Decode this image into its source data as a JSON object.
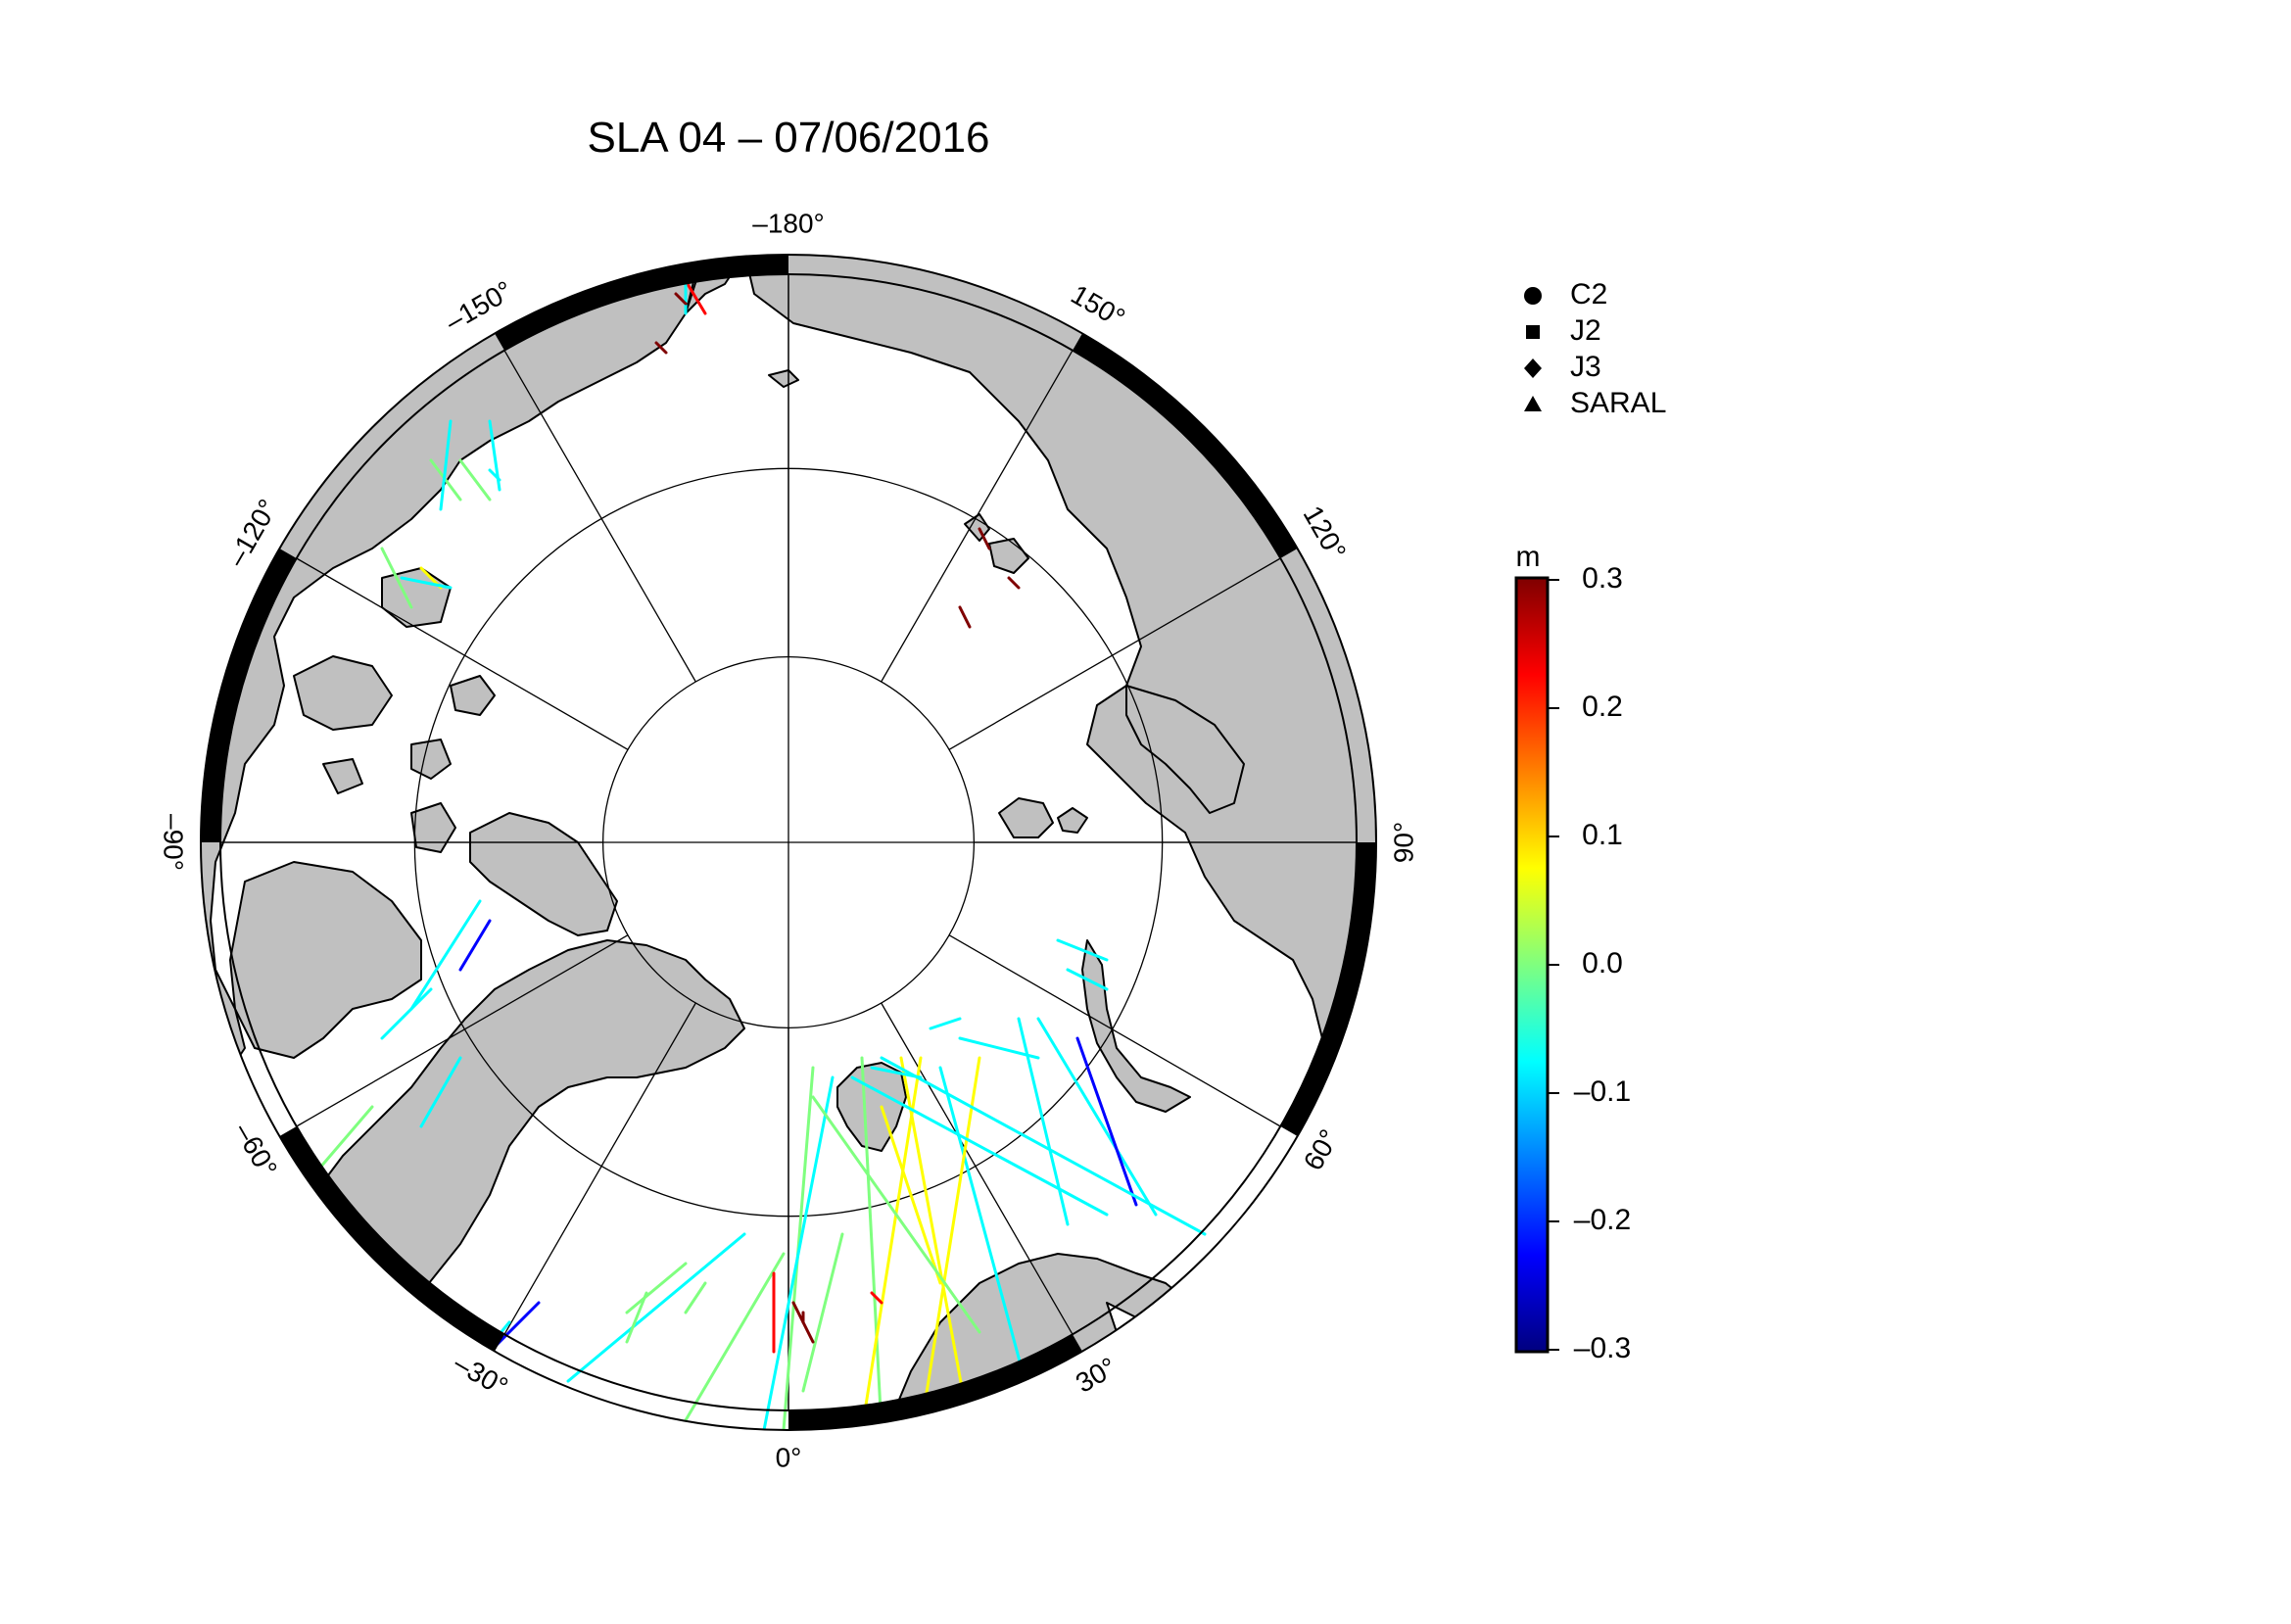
{
  "map": {
    "title": "SLA 04 – 07/06/2016",
    "projection": "north-polar-stereographic",
    "lon_labels": [
      {
        "lon": 180,
        "text": "–180°"
      },
      {
        "lon": 150,
        "text": "150°"
      },
      {
        "lon": 120,
        "text": "120°"
      },
      {
        "lon": 90,
        "text": "90°"
      },
      {
        "lon": 60,
        "text": "60°"
      },
      {
        "lon": 30,
        "text": "30°"
      },
      {
        "lon": 0,
        "text": "0°"
      },
      {
        "lon": -30,
        "text": "–30°"
      },
      {
        "lon": -60,
        "text": "–60°"
      },
      {
        "lon": -90,
        "text": "–90°"
      },
      {
        "lon": -120,
        "text": "–120°"
      },
      {
        "lon": -150,
        "text": "–150°"
      }
    ],
    "meridians_deg": [
      0,
      30,
      60,
      90,
      120,
      150,
      180,
      210,
      240,
      270,
      300,
      330
    ],
    "latitude_circles": [
      70,
      80
    ],
    "land_color": "#c0c0c0",
    "ocean_color": "#ffffff"
  },
  "legend": {
    "items": [
      {
        "symbol": "circle",
        "label": "C2"
      },
      {
        "symbol": "square",
        "label": "J2"
      },
      {
        "symbol": "diamond",
        "label": "J3"
      },
      {
        "symbol": "triangle",
        "label": "SARAL"
      }
    ]
  },
  "colorbar": {
    "unit": "m",
    "min": -0.3,
    "max": 0.3,
    "ticks": [
      {
        "value": 0.3,
        "label": "0.3"
      },
      {
        "value": 0.2,
        "label": "0.2"
      },
      {
        "value": 0.1,
        "label": "0.1"
      },
      {
        "value": 0.0,
        "label": "0.0"
      },
      {
        "value": -0.1,
        "label": "–0.1"
      },
      {
        "value": -0.2,
        "label": "–0.2"
      },
      {
        "value": -0.3,
        "label": "–0.3"
      }
    ],
    "colormap": [
      "#00007f",
      "#0000ff",
      "#00ffff",
      "#7fff7f",
      "#ffff00",
      "#ff0000",
      "#7f0000"
    ]
  }
}
